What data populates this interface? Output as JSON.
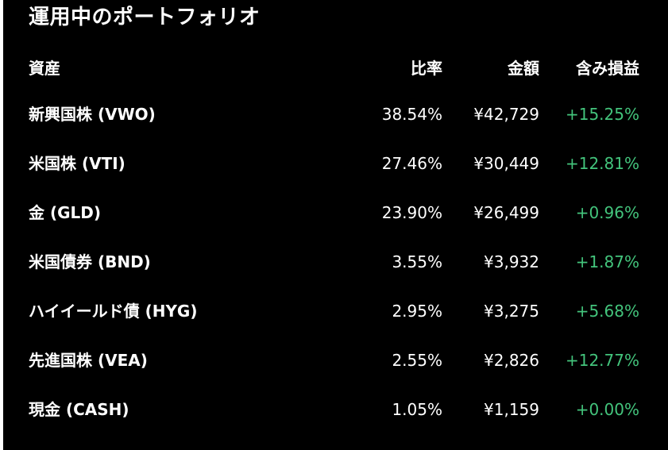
{
  "title": "運用中のポートフォリオ",
  "columns": {
    "asset": "資産",
    "ratio": "比率",
    "amount": "金額",
    "pl": "含み損益"
  },
  "rows": [
    {
      "asset": "新興国株 (VWO)",
      "ratio": "38.54%",
      "amount": "¥42,729",
      "pl": "+15.25%"
    },
    {
      "asset": "米国株 (VTI)",
      "ratio": "27.46%",
      "amount": "¥30,449",
      "pl": "+12.81%"
    },
    {
      "asset": "金 (GLD)",
      "ratio": "23.90%",
      "amount": "¥26,499",
      "pl": "+0.96%"
    },
    {
      "asset": "米国債券 (BND)",
      "ratio": "3.55%",
      "amount": "¥3,932",
      "pl": "+1.87%"
    },
    {
      "asset": "ハイイールド債 (HYG)",
      "ratio": "2.95%",
      "amount": "¥3,275",
      "pl": "+5.68%"
    },
    {
      "asset": "先進国株 (VEA)",
      "ratio": "2.55%",
      "amount": "¥2,826",
      "pl": "+12.77%"
    },
    {
      "asset": "現金 (CASH)",
      "ratio": "1.05%",
      "amount": "¥1,159",
      "pl": "+0.00%"
    }
  ],
  "colors": {
    "background": "#000000",
    "text": "#ffffff",
    "positive": "#43c47c"
  }
}
